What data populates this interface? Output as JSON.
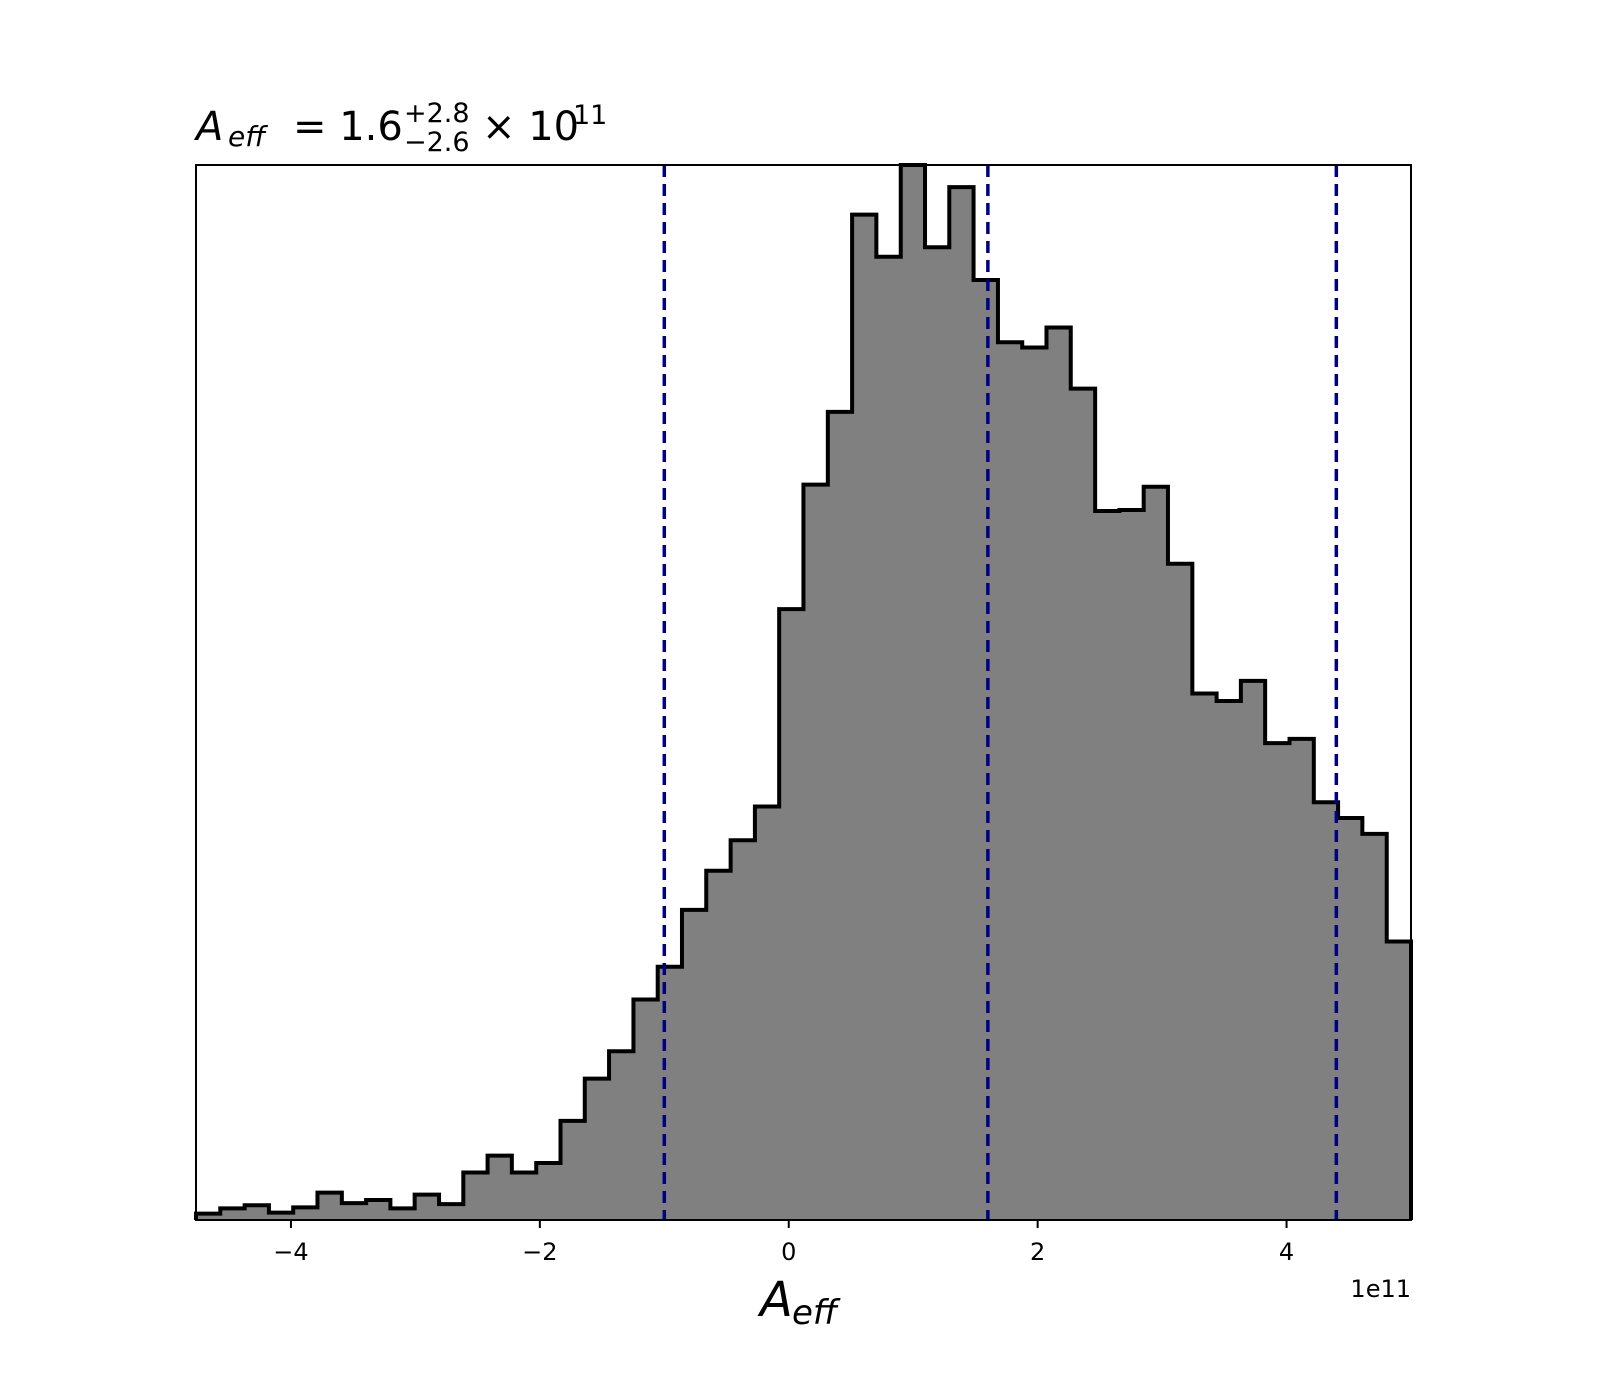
{
  "chart_data": {
    "type": "histogram",
    "title": {
      "symbol": "A",
      "symbol_sub": "eff",
      "text": "= 1.6",
      "upper": "+2.8",
      "lower": "−2.6",
      "times": "× 10",
      "exponent": "11"
    },
    "xlabel": {
      "symbol": "A",
      "symbol_sub": "eff"
    },
    "x_offset_label": "1e11",
    "bins": [
      -4.763,
      -4.568,
      -4.372,
      -4.177,
      -3.982,
      -3.787,
      -3.591,
      -3.396,
      -3.201,
      -3.006,
      -2.81,
      -2.615,
      -2.42,
      -2.225,
      -2.029,
      -1.834,
      -1.639,
      -1.444,
      -1.248,
      -1.053,
      -0.858,
      -0.663,
      -0.467,
      -0.272,
      -0.077,
      0.118,
      0.314,
      0.509,
      0.704,
      0.9,
      1.095,
      1.29,
      1.485,
      1.681,
      1.876,
      2.071,
      2.266,
      2.462,
      2.657,
      2.852,
      3.047,
      3.243,
      3.438,
      3.633,
      3.828,
      4.024,
      4.219,
      4.414,
      4.609,
      4.805,
      5.0
    ],
    "values": [
      0.006,
      0.011,
      0.014,
      0.007,
      0.012,
      0.026,
      0.016,
      0.019,
      0.011,
      0.024,
      0.015,
      0.045,
      0.061,
      0.045,
      0.054,
      0.094,
      0.134,
      0.16,
      0.209,
      0.24,
      0.294,
      0.331,
      0.36,
      0.392,
      0.579,
      0.697,
      0.766,
      0.953,
      0.913,
      1.0,
      0.922,
      0.979,
      0.891,
      0.832,
      0.827,
      0.846,
      0.788,
      0.672,
      0.673,
      0.695,
      0.622,
      0.499,
      0.492,
      0.511,
      0.452,
      0.456,
      0.396,
      0.381,
      0.366,
      0.264
    ],
    "color": "#808080",
    "edge_color": "#000000",
    "vlines": [
      -1.0,
      1.6,
      4.4
    ],
    "vline_color": "#000080",
    "xlim": [
      -4.763,
      5.0
    ],
    "ylim": [
      0,
      1
    ],
    "xticks": [
      {
        "value": -4,
        "label": "−4"
      },
      {
        "value": -2,
        "label": "−2"
      },
      0,
      2,
      4
    ],
    "grid": false
  }
}
